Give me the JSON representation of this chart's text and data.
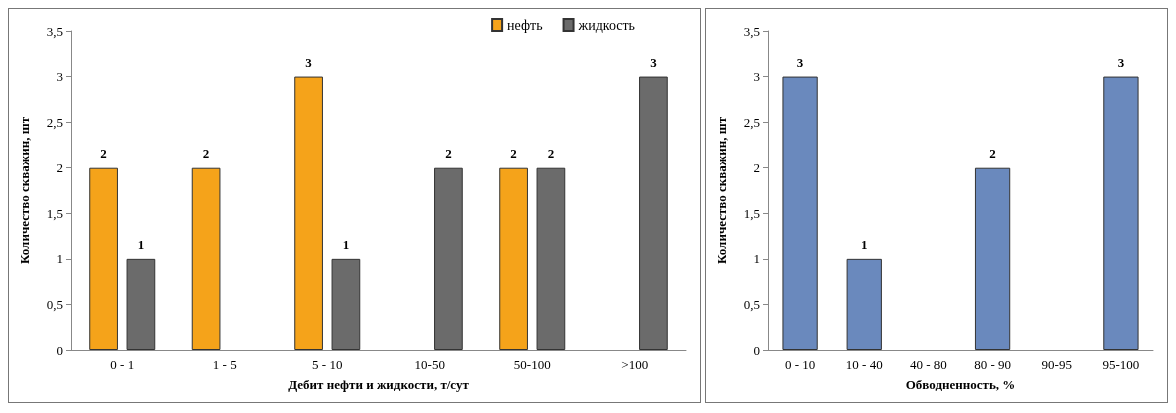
{
  "chart_data": [
    {
      "type": "bar",
      "xlabel": "Дебит нефти и жидкости, т/сут",
      "ylabel": "Количество скважин, шт",
      "categories": [
        "0 - 1",
        "1 - 5",
        "5 - 10",
        "10-50",
        "50-100",
        ">100"
      ],
      "series": [
        {
          "name": "нефть",
          "color": "#f5a31a",
          "values": [
            2,
            2,
            3,
            null,
            2,
            null
          ]
        },
        {
          "name": "жидкость",
          "color": "#6b6b6b",
          "values": [
            1,
            null,
            1,
            2,
            2,
            3
          ]
        }
      ],
      "ylim": [
        0,
        3.5
      ],
      "yticks": [
        0,
        {
          "value": 0.5,
          "label": "0,5"
        },
        1,
        {
          "value": 1.5,
          "label": "1,5"
        },
        2,
        {
          "value": 2.5,
          "label": "2,5"
        },
        3,
        {
          "value": 3.5,
          "label": "3,5"
        }
      ],
      "grid": false,
      "legend": "top right",
      "data_labels": true
    },
    {
      "type": "bar",
      "xlabel": "Обводненность, %",
      "ylabel": "Количество скважин, шт",
      "categories": [
        "0 - 10",
        "10 - 40",
        "40 - 80",
        "80 - 90",
        "90-95",
        "95-100"
      ],
      "series": [
        {
          "color": "#6a89bd",
          "values": [
            3,
            1,
            null,
            2,
            null,
            3
          ]
        }
      ],
      "ylim": [
        0,
        3.5
      ],
      "yticks": [
        0,
        {
          "value": 0.5,
          "label": "0,5"
        },
        1,
        {
          "value": 1.5,
          "label": "1,5"
        },
        2,
        {
          "value": 2.5,
          "label": "2,5"
        },
        3,
        {
          "value": 3.5,
          "label": "3,5"
        }
      ],
      "grid": false,
      "legend": false,
      "data_labels": true
    }
  ]
}
